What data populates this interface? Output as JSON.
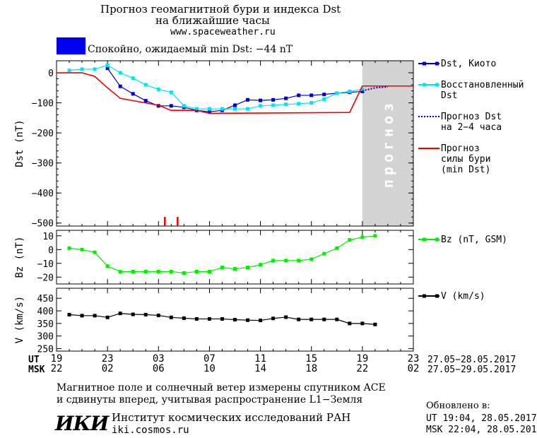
{
  "header": {
    "title_line1": "Прогноз геомагнитной бури и индекса Dst",
    "title_line2": "на ближайшие часы",
    "site": "www.spaceweather.ru",
    "status_text": "Спокойно, ожидаемый min Dst: −44 nT",
    "status_color": "#0000ee"
  },
  "chart_data": [
    {
      "type": "line",
      "id": "dst",
      "ylabel": "Dst (nT)",
      "ylim": [
        -510,
        40
      ],
      "yticks": [
        0,
        -100,
        -200,
        -300,
        -400,
        -500
      ],
      "ytick_labels": [
        "0",
        "−100",
        "−200",
        "−300",
        "−400",
        "−500"
      ],
      "xlim": [
        19,
        47
      ],
      "forecast_region": {
        "from": 43,
        "to": 47,
        "label": "прогноз",
        "color": "#d3d3d3"
      },
      "storm_ticks_x": [
        27.5,
        28.5
      ],
      "series": [
        {
          "name": "Dst, Киото",
          "color": "#0000cc",
          "style": "solid-square",
          "x": [
            23,
            24,
            25,
            26,
            27,
            28,
            29,
            30,
            31,
            32,
            33,
            34,
            35,
            36,
            37,
            38,
            39,
            40,
            41,
            42,
            43
          ],
          "y": [
            15,
            -45,
            -70,
            -93,
            -110,
            -110,
            -115,
            -125,
            -130,
            -125,
            -108,
            -90,
            -92,
            -90,
            -85,
            -75,
            -75,
            -72,
            -68,
            -65,
            -62
          ]
        },
        {
          "name": "Восстановленный Dst",
          "color": "#00e5ee",
          "style": "solid-square",
          "x": [
            20,
            21,
            22,
            23,
            24,
            25,
            26,
            27,
            28,
            29,
            30,
            31,
            32,
            33,
            34,
            35,
            36,
            37,
            38,
            39,
            40,
            41,
            42,
            43
          ],
          "y": [
            8,
            12,
            12,
            25,
            0,
            -18,
            -40,
            -55,
            -65,
            -110,
            -120,
            -120,
            -120,
            -120,
            -120,
            -110,
            -108,
            -105,
            -103,
            -100,
            -88,
            -68,
            -62,
            -55
          ]
        },
        {
          "name": "Прогноз Dst на 2-4 часа",
          "color": "#0000cc",
          "style": "dotted",
          "x": [
            43,
            44,
            45
          ],
          "y": [
            -60,
            -50,
            -47
          ]
        },
        {
          "name": "Прогноз силы бури (min Dst)",
          "color": "#ee0000",
          "style": "solid",
          "x": [
            19,
            21,
            22,
            23,
            24,
            27,
            28,
            30,
            31,
            42,
            43,
            47
          ],
          "y": [
            0,
            0,
            -12,
            -50,
            -85,
            -108,
            -125,
            -125,
            -135,
            -132,
            -44,
            -44
          ]
        }
      ]
    },
    {
      "type": "line",
      "id": "bz",
      "ylabel": "Bz (nT)",
      "ylim": [
        -25,
        14
      ],
      "yticks": [
        10,
        0,
        -10,
        -20
      ],
      "ytick_labels": [
        "10",
        "0",
        "−10",
        "−20"
      ],
      "xlim": [
        19,
        47
      ],
      "series": [
        {
          "name": "Bz (nT, GSM)",
          "color": "#00ee00",
          "x": [
            20,
            21,
            22,
            23,
            24,
            25,
            26,
            27,
            28,
            29,
            30,
            31,
            32,
            33,
            34,
            35,
            36,
            37,
            38,
            39,
            40,
            41,
            42,
            43,
            44
          ],
          "y": [
            1,
            0,
            -2,
            -12,
            -16,
            -16,
            -16,
            -16,
            -16,
            -17,
            -16,
            -16,
            -13,
            -14,
            -13,
            -11,
            -8,
            -8,
            -8,
            -7,
            -3,
            1,
            7,
            9,
            10
          ]
        }
      ]
    },
    {
      "type": "line",
      "id": "v",
      "ylabel": "V (km/s)",
      "ylim": [
        240,
        490
      ],
      "yticks": [
        450,
        400,
        350,
        300,
        250
      ],
      "ytick_labels": [
        "450",
        "400",
        "350",
        "300",
        "250"
      ],
      "xlim": [
        19,
        47
      ],
      "series": [
        {
          "name": "V (km/s)",
          "color": "#000000",
          "x": [
            20,
            21,
            22,
            23,
            24,
            25,
            26,
            27,
            28,
            29,
            30,
            31,
            32,
            33,
            34,
            35,
            36,
            37,
            38,
            39,
            40,
            41,
            42,
            43,
            44
          ],
          "y": [
            385,
            381,
            381,
            374,
            390,
            386,
            385,
            382,
            374,
            371,
            368,
            368,
            368,
            365,
            363,
            362,
            370,
            375,
            366,
            366,
            366,
            366,
            350,
            350,
            346
          ]
        }
      ]
    }
  ],
  "time_axis": {
    "ut_label": "UT",
    "msk_label": "MSK",
    "x": [
      19,
      23,
      27,
      31,
      35,
      39,
      43,
      47
    ],
    "ut_ticks": [
      "19",
      "23",
      "03",
      "07",
      "11",
      "15",
      "19",
      "23"
    ],
    "msk_ticks": [
      "22",
      "02",
      "06",
      "10",
      "14",
      "18",
      "22",
      "02"
    ],
    "ut_range": "27.05−28.05.2017",
    "msk_range": "27.05−29.05.2017"
  },
  "footer": {
    "note_line1": "Магнитное поле и солнечный ветер измерены спутником ACE",
    "note_line2": "и сдвинуты вперед, учитывая распространение L1−Земля",
    "institute_logo": "ИКИ",
    "institute_name": "Институт космических исследований РАН",
    "institute_site": "iki.cosmos.ru",
    "updated_label": "Обновлено в:",
    "updated_ut": "UT  19:04, 28.05.2017",
    "updated_msk": "MSK 22:04, 28.05.2017"
  },
  "legend": {
    "dst_kyoto": "Dst, Киото",
    "restored_1": "Восстановленный",
    "restored_2": "Dst",
    "forecast_1": "Прогноз Dst",
    "forecast_2": "на 2−4 часа",
    "storm_1": "Прогноз",
    "storm_2": "силы бури",
    "storm_3": "(min Dst)",
    "bz": "Bz (nT, GSM)",
    "v": "V (km/s)"
  }
}
